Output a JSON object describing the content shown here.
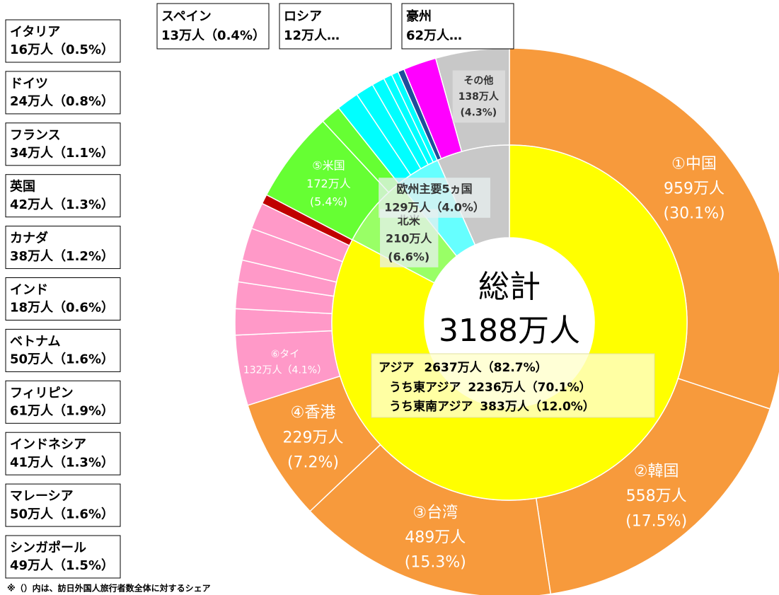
{
  "chart_data": {
    "type": "donut",
    "center_title": "総計",
    "total": 3188,
    "total_label": "3188万人",
    "outer": {
      "categories": [
        "①中国",
        "②韓国",
        "③台湾",
        "④香港",
        "⑥タイ",
        "シンガポール",
        "マレーシア",
        "インドネシア",
        "フィリピン",
        "ベトナム",
        "インド",
        "⑤米国",
        "カナダ",
        "英国",
        "フランス",
        "ドイツ",
        "イタリア",
        "スペイン",
        "ロシア",
        "豪州",
        "その他"
      ],
      "values": [
        959,
        558,
        489,
        229,
        132,
        49,
        50,
        41,
        61,
        50,
        18,
        172,
        38,
        42,
        34,
        24,
        16,
        13,
        12,
        62,
        138
      ],
      "value_labels": [
        "959万人",
        "558万人",
        "489万人",
        "229万人",
        "132万人",
        "49万人",
        "50万人",
        "41万人",
        "61万人",
        "50万人",
        "18万人",
        "172万人",
        "38万人",
        "42万人",
        "34万人",
        "24万人",
        "16万人",
        "13万人",
        "12万人…",
        "62万人…",
        "138万人"
      ],
      "share_labels": [
        "(30.1%)",
        "(17.5%)",
        "(15.3%)",
        "(7.2%)",
        "（4.1%）",
        "（1.5%）",
        "（1.6%）",
        "（1.3%）",
        "（1.9%）",
        "（1.6%）",
        "（0.6%）",
        "(5.4%)",
        "（1.2%）",
        "（1.3%）",
        "（1.1%）",
        "（0.8%）",
        "（0.5%）",
        "（0.4%）",
        null,
        null,
        "(4.3%)"
      ],
      "colors": [
        "#f79a3c",
        "#f79a3c",
        "#f79a3c",
        "#f79a3c",
        "#ff99c8",
        "#ff99c8",
        "#ff99c8",
        "#ff99c8",
        "#ff99c8",
        "#ff99c8",
        "#c00000",
        "#66ff33",
        "#66ff33",
        "#00ffff",
        "#00ffff",
        "#00ffff",
        "#00ffff",
        "#00ffff",
        "#1f4e9a",
        "#ff00ff",
        "#c8c8c8"
      ]
    },
    "inner": {
      "categories": [
        "アジア",
        "北米",
        "欧州主要5ヵ国"
      ],
      "values": [
        2637,
        210,
        129
      ],
      "value_labels": [
        "2637万人",
        "210万人",
        "129万人"
      ],
      "share_labels": [
        "（82.7%）",
        "(6.6%)",
        "（4.0%）"
      ],
      "colors": [
        "#ffff00",
        "#99ff66",
        "#66ffff"
      ]
    },
    "annotations": [
      {
        "label": "うち東アジア",
        "value": 2236,
        "value_label": "2236万人",
        "share_label": "（70.1%）"
      },
      {
        "label": "うち東南アジア",
        "value": 383,
        "value_label": "383万人",
        "share_label": "（12.0%）"
      }
    ],
    "footnote": "※（）内は、訪日外国人旅行者数全体に対するシェア"
  }
}
